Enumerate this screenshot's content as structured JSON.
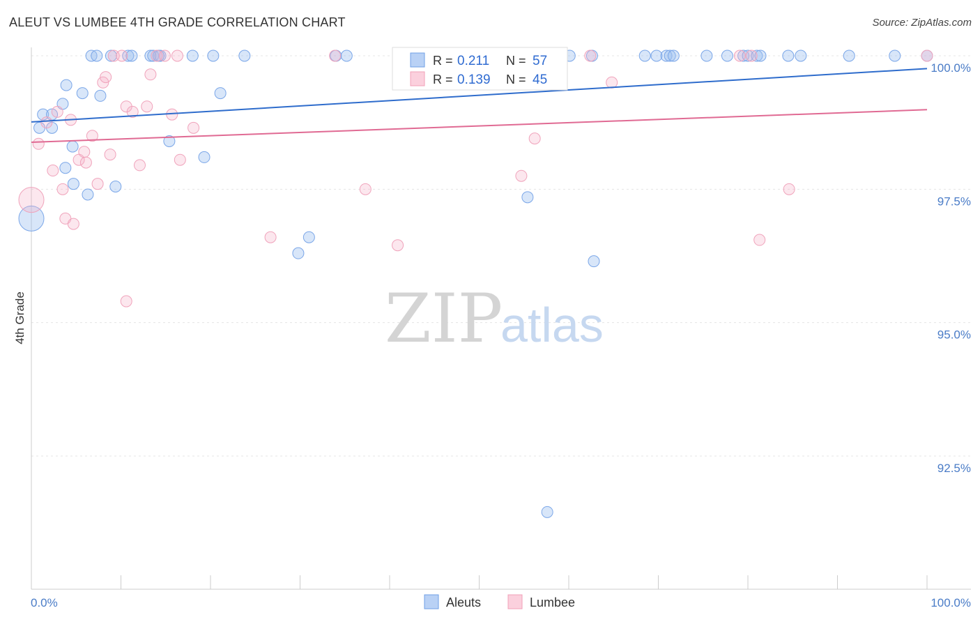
{
  "title": "ALEUT VS LUMBEE 4TH GRADE CORRELATION CHART",
  "source": "Source: ZipAtlas.com",
  "watermark": {
    "zip": "ZIP",
    "atlas": "atlas"
  },
  "colors": {
    "aleut": "#6f9fe6",
    "lumbee": "#f0a0b8",
    "aleut_line": "#2e6ccc",
    "lumbee_line": "#e06a93",
    "tick": "#4a7cc7"
  },
  "legend": {
    "aleut": {
      "r_label": "R = ",
      "r_value": "0.211",
      "n_label": "N = ",
      "n_value": "57"
    },
    "lumbee": {
      "r_label": "R = ",
      "r_value": "0.139",
      "n_label": "N = ",
      "n_value": "45"
    }
  },
  "chart_data": {
    "type": "scatter",
    "xlabel": "",
    "ylabel": "4th Grade",
    "xlim": [
      0,
      100
    ],
    "ylim": [
      90.5,
      100.3
    ],
    "x_tick_labels": [
      "0.0%",
      "100.0%"
    ],
    "y_ticks": [
      {
        "value": 100.0,
        "label": "100.0%"
      },
      {
        "value": 97.5,
        "label": "97.5%"
      },
      {
        "value": 95.0,
        "label": "95.0%"
      },
      {
        "value": 92.5,
        "label": "92.5%"
      }
    ],
    "grid": true,
    "legend_position": "top-center",
    "series": [
      {
        "name": "Aleuts",
        "color": "#6f9fe6",
        "trend": {
          "x": [
            0,
            100
          ],
          "y": [
            98.76,
            99.76
          ]
        },
        "points": [
          [
            0.0,
            96.95,
            1
          ],
          [
            1.3,
            98.9,
            0
          ],
          [
            0.9,
            98.65,
            0
          ],
          [
            2.3,
            98.65,
            0
          ],
          [
            2.3,
            98.9,
            0
          ],
          [
            3.5,
            99.1,
            0
          ],
          [
            3.8,
            97.9,
            0
          ],
          [
            3.9,
            99.45,
            0
          ],
          [
            4.6,
            98.3,
            0
          ],
          [
            4.7,
            97.6,
            0
          ],
          [
            5.7,
            99.3,
            0
          ],
          [
            6.3,
            97.4,
            0
          ],
          [
            7.7,
            99.25,
            0
          ],
          [
            6.7,
            100.0,
            0
          ],
          [
            7.3,
            100.0,
            0
          ],
          [
            8.9,
            100.0,
            0
          ],
          [
            9.4,
            97.55,
            0
          ],
          [
            10.8,
            100.0,
            0
          ],
          [
            11.2,
            100.0,
            0
          ],
          [
            13.3,
            100.0,
            0
          ],
          [
            13.6,
            100.0,
            0
          ],
          [
            14.4,
            100.0,
            0
          ],
          [
            14.2,
            100.0,
            0
          ],
          [
            15.4,
            98.4,
            0
          ],
          [
            18.0,
            100.0,
            0
          ],
          [
            19.3,
            98.1,
            0
          ],
          [
            20.3,
            100.0,
            0
          ],
          [
            21.1,
            99.3,
            0
          ],
          [
            23.8,
            100.0,
            0
          ],
          [
            29.8,
            96.3,
            0
          ],
          [
            31.0,
            96.6,
            0
          ],
          [
            34.0,
            100.0,
            0
          ],
          [
            35.2,
            100.0,
            0
          ],
          [
            47.0,
            100.0,
            0
          ],
          [
            47.8,
            100.0,
            0
          ],
          [
            55.4,
            97.35,
            0
          ],
          [
            55.7,
            100.0,
            0
          ],
          [
            57.6,
            91.45,
            0
          ],
          [
            60.1,
            100.0,
            0
          ],
          [
            62.6,
            100.0,
            0
          ],
          [
            62.8,
            96.15,
            0
          ],
          [
            68.5,
            100.0,
            0
          ],
          [
            69.8,
            100.0,
            0
          ],
          [
            70.9,
            100.0,
            0
          ],
          [
            71.3,
            100.0,
            0
          ],
          [
            71.7,
            100.0,
            0
          ],
          [
            75.4,
            100.0,
            0
          ],
          [
            77.7,
            100.0,
            0
          ],
          [
            79.5,
            100.0,
            0
          ],
          [
            80.0,
            100.0,
            0
          ],
          [
            81.0,
            100.0,
            0
          ],
          [
            81.4,
            100.0,
            0
          ],
          [
            84.5,
            100.0,
            0
          ],
          [
            85.9,
            100.0,
            0
          ],
          [
            91.3,
            100.0,
            0
          ],
          [
            96.4,
            100.0,
            0
          ],
          [
            100.0,
            100.0,
            0
          ]
        ]
      },
      {
        "name": "Lumbee",
        "color": "#f0a0b8",
        "trend": {
          "x": [
            0,
            100
          ],
          "y": [
            98.38,
            98.99
          ]
        },
        "points": [
          [
            0.0,
            97.3,
            1
          ],
          [
            0.8,
            98.35,
            0
          ],
          [
            1.7,
            98.75,
            0
          ],
          [
            2.4,
            97.85,
            0
          ],
          [
            2.9,
            98.95,
            0
          ],
          [
            3.5,
            97.5,
            0
          ],
          [
            3.8,
            96.95,
            0
          ],
          [
            4.4,
            98.8,
            0
          ],
          [
            4.7,
            96.85,
            0
          ],
          [
            5.3,
            98.05,
            0
          ],
          [
            5.9,
            98.2,
            0
          ],
          [
            6.1,
            98.0,
            0
          ],
          [
            6.8,
            98.5,
            0
          ],
          [
            7.4,
            97.6,
            0
          ],
          [
            8.0,
            99.5,
            0
          ],
          [
            8.3,
            99.6,
            0
          ],
          [
            8.8,
            98.15,
            0
          ],
          [
            9.2,
            100.0,
            0
          ],
          [
            10.1,
            100.0,
            0
          ],
          [
            10.6,
            95.4,
            0
          ],
          [
            10.6,
            99.05,
            0
          ],
          [
            11.3,
            98.95,
            0
          ],
          [
            12.1,
            97.95,
            0
          ],
          [
            12.9,
            99.05,
            0
          ],
          [
            13.3,
            99.65,
            0
          ],
          [
            14.0,
            100.0,
            0
          ],
          [
            14.9,
            100.0,
            0
          ],
          [
            15.7,
            98.9,
            0
          ],
          [
            16.3,
            100.0,
            0
          ],
          [
            16.6,
            98.05,
            0
          ],
          [
            18.1,
            98.65,
            0
          ],
          [
            26.7,
            96.6,
            0
          ],
          [
            33.9,
            100.0,
            0
          ],
          [
            37.3,
            97.5,
            0
          ],
          [
            40.9,
            96.45,
            0
          ],
          [
            54.5,
            100.0,
            0
          ],
          [
            54.7,
            97.75,
            0
          ],
          [
            56.2,
            98.45,
            0
          ],
          [
            62.4,
            100.0,
            0
          ],
          [
            64.8,
            99.5,
            0
          ],
          [
            79.1,
            100.0,
            0
          ],
          [
            80.4,
            100.0,
            0
          ],
          [
            81.3,
            96.55,
            0
          ],
          [
            84.6,
            97.5,
            0
          ],
          [
            100.0,
            100.0,
            0
          ]
        ]
      }
    ]
  }
}
